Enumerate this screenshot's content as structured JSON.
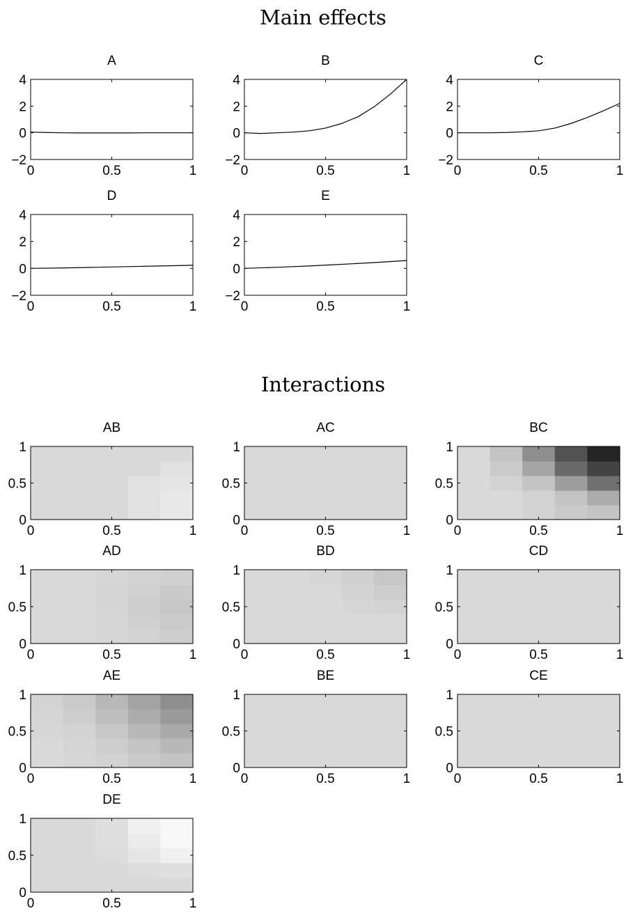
{
  "main_effects_title": "Main effects",
  "interactions_title": "Interactions",
  "chart_data": [
    {
      "type": "line",
      "title": "A",
      "xlim": [
        0,
        1
      ],
      "ylim": [
        -2,
        4
      ],
      "xticks": [
        "0",
        "0.5",
        "1"
      ],
      "yticks": [
        "4",
        "2",
        "0",
        "−2"
      ],
      "x": [
        0,
        0.1,
        0.2,
        0.3,
        0.4,
        0.5,
        0.6,
        0.7,
        0.8,
        0.9,
        1.0
      ],
      "y": [
        0.05,
        0.02,
        0.0,
        -0.01,
        -0.01,
        -0.01,
        -0.01,
        0.0,
        0.0,
        0.0,
        0.0
      ]
    },
    {
      "type": "line",
      "title": "B",
      "xlim": [
        0,
        1
      ],
      "ylim": [
        -2,
        4
      ],
      "xticks": [
        "0",
        "0.5",
        "1"
      ],
      "yticks": [
        "4",
        "2",
        "0",
        "−2"
      ],
      "x": [
        0,
        0.1,
        0.2,
        0.3,
        0.4,
        0.5,
        0.6,
        0.7,
        0.8,
        0.9,
        1.0
      ],
      "y": [
        0.0,
        -0.05,
        0.0,
        0.05,
        0.15,
        0.35,
        0.7,
        1.2,
        1.95,
        2.9,
        4.0
      ]
    },
    {
      "type": "line",
      "title": "C",
      "xlim": [
        0,
        1
      ],
      "ylim": [
        -2,
        4
      ],
      "xticks": [
        "0",
        "0.5",
        "1"
      ],
      "yticks": [
        "4",
        "2",
        "0",
        "−2"
      ],
      "x": [
        0,
        0.1,
        0.2,
        0.3,
        0.4,
        0.5,
        0.6,
        0.7,
        0.8,
        0.9,
        1.0
      ],
      "y": [
        0.0,
        0.0,
        0.0,
        0.02,
        0.07,
        0.15,
        0.35,
        0.7,
        1.15,
        1.65,
        2.2
      ]
    },
    {
      "type": "line",
      "title": "D",
      "xlim": [
        0,
        1
      ],
      "ylim": [
        -2,
        4
      ],
      "xticks": [
        "0",
        "0.5",
        "1"
      ],
      "yticks": [
        "4",
        "2",
        "0",
        "−2"
      ],
      "x": [
        0,
        0.2,
        0.4,
        0.6,
        0.8,
        1.0
      ],
      "y": [
        0.0,
        0.03,
        0.08,
        0.13,
        0.18,
        0.23
      ]
    },
    {
      "type": "line",
      "title": "E",
      "xlim": [
        0,
        1
      ],
      "ylim": [
        -2,
        4
      ],
      "xticks": [
        "0",
        "0.5",
        "1"
      ],
      "yticks": [
        "4",
        "2",
        "0",
        "−2"
      ],
      "x": [
        0,
        0.2,
        0.4,
        0.6,
        0.8,
        1.0
      ],
      "y": [
        0.0,
        0.08,
        0.18,
        0.3,
        0.43,
        0.58
      ]
    },
    {
      "type": "heatmap",
      "title": "AB",
      "xlim": [
        0,
        1
      ],
      "ylim": [
        0,
        1
      ],
      "xticks": [
        "0",
        "0.5",
        "1"
      ],
      "yticks": [
        "1",
        "0.5",
        "0"
      ],
      "colormap": "gray",
      "grid": [
        5,
        5
      ],
      "z": [
        [
          0.0,
          0.0,
          0.0,
          -0.05,
          -0.1
        ],
        [
          0.0,
          0.0,
          0.0,
          -0.05,
          -0.1
        ],
        [
          0.0,
          0.0,
          0.0,
          -0.05,
          -0.08
        ],
        [
          0.0,
          0.0,
          0.0,
          0.0,
          -0.05
        ],
        [
          0.0,
          0.0,
          0.0,
          0.0,
          0.0
        ]
      ]
    },
    {
      "type": "heatmap",
      "title": "AC",
      "xlim": [
        0,
        1
      ],
      "ylim": [
        0,
        1
      ],
      "xticks": [
        "0",
        "0.5",
        "1"
      ],
      "yticks": [
        "1",
        "0.5",
        "0"
      ],
      "colormap": "gray",
      "grid": [
        5,
        5
      ],
      "z": [
        [
          0.0,
          0.0,
          0.0,
          0.0,
          0.0
        ],
        [
          0.0,
          0.0,
          0.0,
          0.0,
          0.0
        ],
        [
          0.0,
          0.0,
          0.0,
          0.0,
          0.0
        ],
        [
          0.0,
          0.0,
          0.0,
          0.0,
          0.0
        ],
        [
          0.0,
          0.0,
          0.0,
          0.0,
          0.0
        ]
      ]
    },
    {
      "type": "heatmap",
      "title": "BC",
      "xlim": [
        0,
        1
      ],
      "ylim": [
        0,
        1
      ],
      "xticks": [
        "0",
        "0.5",
        "1"
      ],
      "yticks": [
        "1",
        "0.5",
        "0"
      ],
      "colormap": "gray",
      "grid": [
        5,
        5
      ],
      "z": [
        [
          0.0,
          0.0,
          0.05,
          0.1,
          0.15
        ],
        [
          0.0,
          0.0,
          0.05,
          0.15,
          0.3
        ],
        [
          0.0,
          0.05,
          0.15,
          0.4,
          0.7
        ],
        [
          0.0,
          0.1,
          0.35,
          0.75,
          1.0
        ],
        [
          0.0,
          0.15,
          0.5,
          0.9,
          1.2
        ]
      ]
    },
    {
      "type": "heatmap",
      "title": "AD",
      "xlim": [
        0,
        1
      ],
      "ylim": [
        0,
        1
      ],
      "xticks": [
        "0",
        "0.5",
        "1"
      ],
      "yticks": [
        "1",
        "0.5",
        "0"
      ],
      "colormap": "gray",
      "grid": [
        5,
        5
      ],
      "z": [
        [
          0.0,
          0.0,
          0.02,
          0.05,
          0.08
        ],
        [
          0.0,
          0.0,
          0.02,
          0.06,
          0.1
        ],
        [
          0.0,
          0.0,
          0.03,
          0.08,
          0.12
        ],
        [
          0.0,
          0.0,
          0.03,
          0.06,
          0.1
        ],
        [
          0.0,
          0.0,
          0.02,
          0.04,
          0.06
        ]
      ]
    },
    {
      "type": "heatmap",
      "title": "BD",
      "xlim": [
        0,
        1
      ],
      "ylim": [
        0,
        1
      ],
      "xticks": [
        "0",
        "0.5",
        "1"
      ],
      "yticks": [
        "1",
        "0.5",
        "0"
      ],
      "colormap": "gray",
      "grid": [
        5,
        5
      ],
      "z": [
        [
          0.0,
          0.0,
          0.0,
          0.0,
          0.0
        ],
        [
          0.0,
          0.0,
          0.0,
          0.0,
          0.0
        ],
        [
          0.0,
          0.0,
          0.0,
          0.02,
          0.04
        ],
        [
          0.0,
          0.0,
          0.0,
          0.04,
          0.08
        ],
        [
          0.0,
          0.0,
          0.02,
          0.06,
          0.12
        ]
      ]
    },
    {
      "type": "heatmap",
      "title": "CD",
      "xlim": [
        0,
        1
      ],
      "ylim": [
        0,
        1
      ],
      "xticks": [
        "0",
        "0.5",
        "1"
      ],
      "yticks": [
        "1",
        "0.5",
        "0"
      ],
      "colormap": "gray",
      "grid": [
        5,
        5
      ],
      "z": [
        [
          0.0,
          0.0,
          0.0,
          0.0,
          0.0
        ],
        [
          0.0,
          0.0,
          0.0,
          0.0,
          0.0
        ],
        [
          0.0,
          0.0,
          0.0,
          0.0,
          0.0
        ],
        [
          0.0,
          0.0,
          0.0,
          0.0,
          0.0
        ],
        [
          0.0,
          0.0,
          0.0,
          0.0,
          0.0
        ]
      ]
    },
    {
      "type": "heatmap",
      "title": "AE",
      "xlim": [
        0,
        1
      ],
      "ylim": [
        0,
        1
      ],
      "xticks": [
        "0",
        "0.5",
        "1"
      ],
      "yticks": [
        "1",
        "0.5",
        "0"
      ],
      "colormap": "gray",
      "grid": [
        5,
        5
      ],
      "z": [
        [
          0.0,
          0.02,
          0.05,
          0.1,
          0.15
        ],
        [
          0.0,
          0.03,
          0.08,
          0.15,
          0.22
        ],
        [
          0.02,
          0.05,
          0.12,
          0.22,
          0.32
        ],
        [
          0.03,
          0.08,
          0.18,
          0.3,
          0.42
        ],
        [
          0.05,
          0.1,
          0.22,
          0.36,
          0.5
        ]
      ]
    },
    {
      "type": "heatmap",
      "title": "BE",
      "xlim": [
        0,
        1
      ],
      "ylim": [
        0,
        1
      ],
      "xticks": [
        "0",
        "0.5",
        "1"
      ],
      "yticks": [
        "1",
        "0.5",
        "0"
      ],
      "colormap": "gray",
      "grid": [
        5,
        5
      ],
      "z": [
        [
          0.0,
          0.0,
          0.0,
          0.0,
          0.0
        ],
        [
          0.0,
          0.0,
          0.0,
          0.0,
          0.0
        ],
        [
          0.0,
          0.0,
          0.0,
          0.0,
          0.0
        ],
        [
          0.0,
          0.0,
          0.0,
          0.0,
          0.0
        ],
        [
          0.0,
          0.0,
          0.0,
          0.0,
          0.0
        ]
      ]
    },
    {
      "type": "heatmap",
      "title": "CE",
      "xlim": [
        0,
        1
      ],
      "ylim": [
        0,
        1
      ],
      "xticks": [
        "0",
        "0.5",
        "1"
      ],
      "yticks": [
        "1",
        "0.5",
        "0"
      ],
      "colormap": "gray",
      "grid": [
        5,
        5
      ],
      "z": [
        [
          0.0,
          0.0,
          0.0,
          0.0,
          0.0
        ],
        [
          0.0,
          0.0,
          0.0,
          0.0,
          0.0
        ],
        [
          0.0,
          0.0,
          0.0,
          0.0,
          0.0
        ],
        [
          0.0,
          0.0,
          0.0,
          0.0,
          0.0
        ],
        [
          0.0,
          0.0,
          0.0,
          0.0,
          0.0
        ]
      ]
    },
    {
      "type": "heatmap",
      "title": "DE",
      "xlim": [
        0,
        1
      ],
      "ylim": [
        0,
        1
      ],
      "xticks": [
        "0",
        "0.5",
        "1"
      ],
      "yticks": [
        "1",
        "0.5",
        "0"
      ],
      "colormap": "gray",
      "grid": [
        5,
        5
      ],
      "z": [
        [
          0.0,
          0.0,
          0.0,
          0.0,
          0.0
        ],
        [
          0.0,
          0.0,
          0.0,
          -0.02,
          -0.04
        ],
        [
          0.0,
          0.0,
          -0.02,
          -0.08,
          -0.15
        ],
        [
          0.0,
          0.0,
          -0.03,
          -0.12,
          -0.25
        ],
        [
          0.0,
          0.0,
          -0.04,
          -0.15,
          -0.3
        ]
      ]
    }
  ]
}
